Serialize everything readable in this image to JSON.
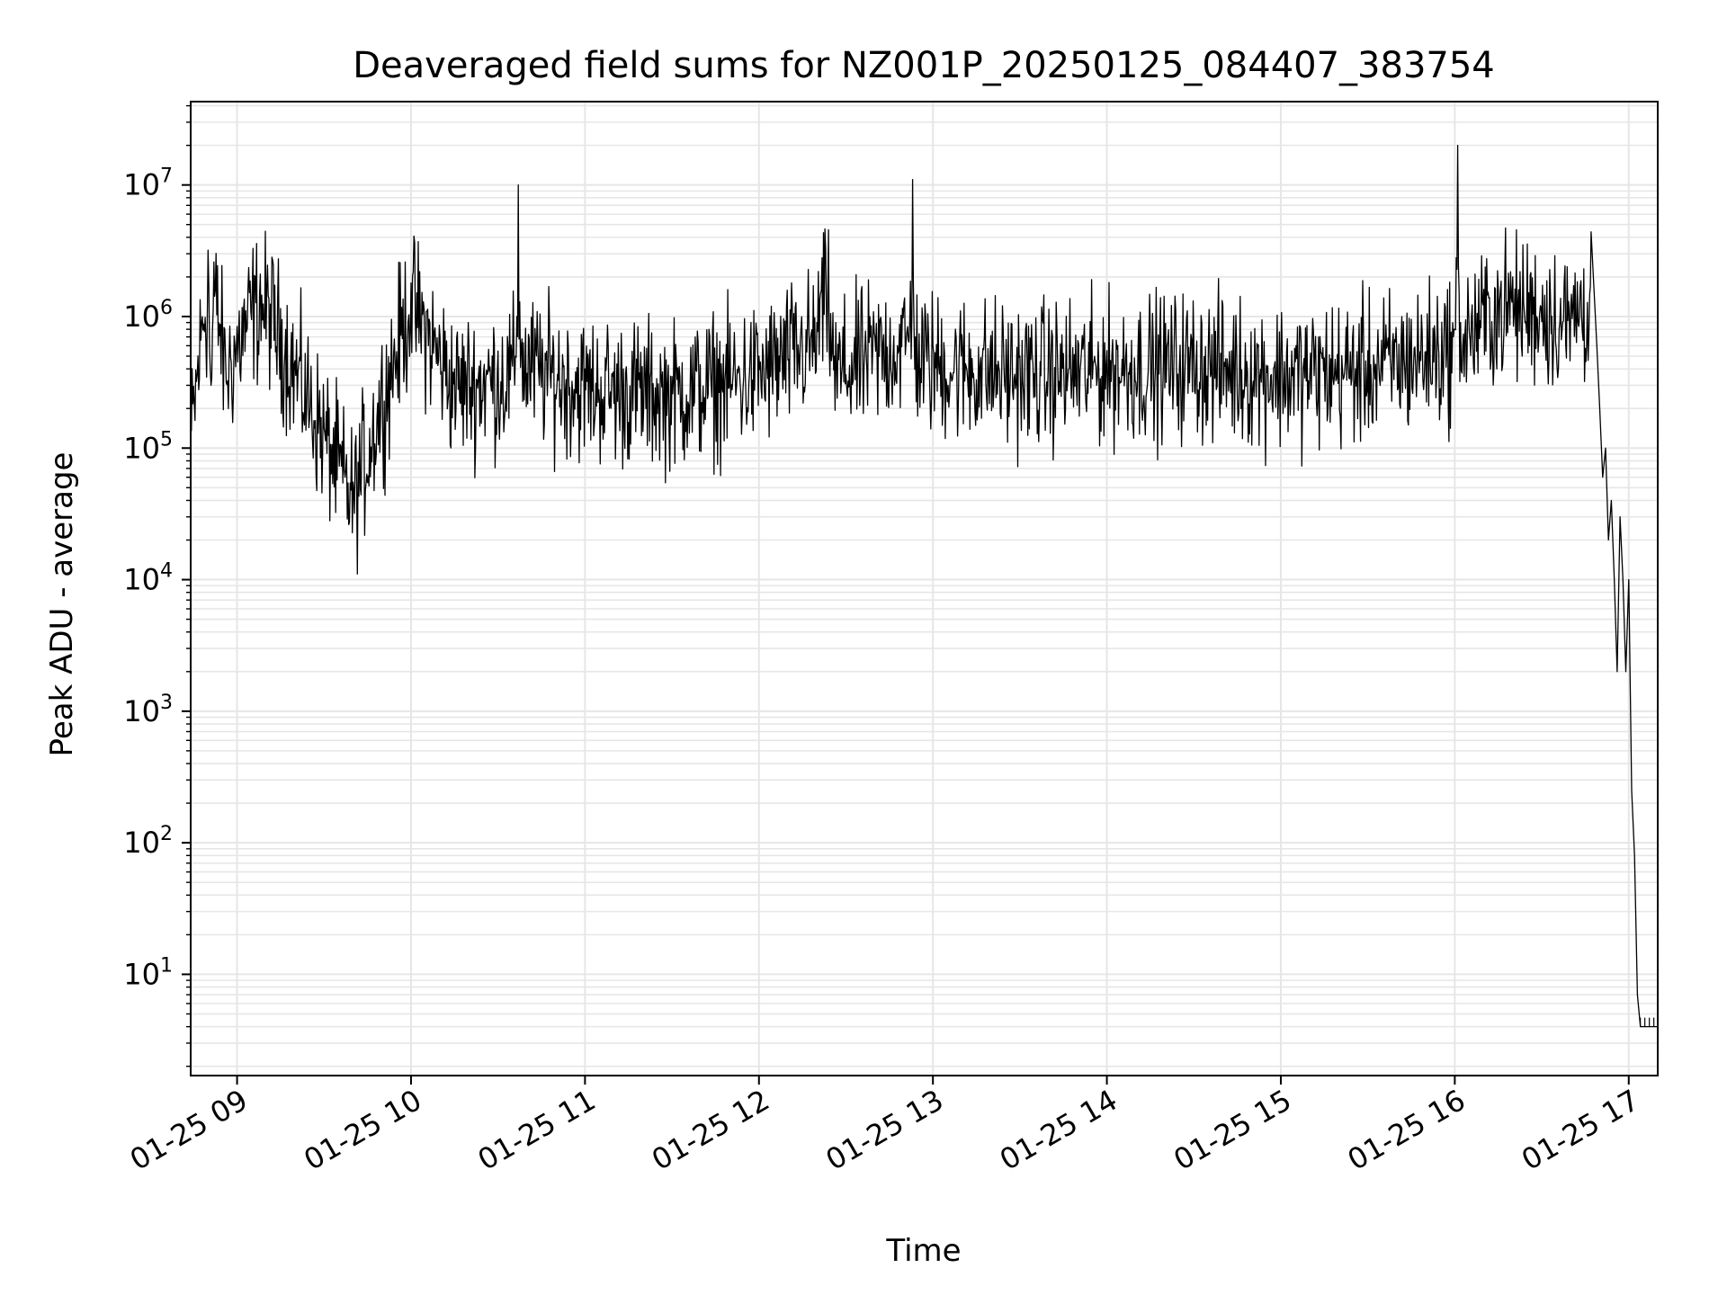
{
  "chart_data": {
    "type": "line",
    "title": "Deaveraged field sums for NZ001P_20250125_084407_383754",
    "xlabel": "Time",
    "ylabel": "Peak ADU - average",
    "yscale": "log",
    "grid": true,
    "legend": "none",
    "line_color": "#000000",
    "xlim": [
      "2025-01-25 08:44",
      "2025-01-25 17:10"
    ],
    "ylim": [
      1.7,
      43000000
    ],
    "x_ticks": [
      {
        "value": "2025-01-25 09:00",
        "label": "01-25 09"
      },
      {
        "value": "2025-01-25 10:00",
        "label": "01-25 10"
      },
      {
        "value": "2025-01-25 11:00",
        "label": "01-25 11"
      },
      {
        "value": "2025-01-25 12:00",
        "label": "01-25 12"
      },
      {
        "value": "2025-01-25 13:00",
        "label": "01-25 13"
      },
      {
        "value": "2025-01-25 14:00",
        "label": "01-25 14"
      },
      {
        "value": "2025-01-25 15:00",
        "label": "01-25 15"
      },
      {
        "value": "2025-01-25 16:00",
        "label": "01-25 16"
      },
      {
        "value": "2025-01-25 17:00",
        "label": "01-25 17"
      }
    ],
    "y_ticks": [
      {
        "value": 10,
        "base": "10",
        "exp": "1"
      },
      {
        "value": 100,
        "base": "10",
        "exp": "2"
      },
      {
        "value": 1000,
        "base": "10",
        "exp": "3"
      },
      {
        "value": 10000,
        "base": "10",
        "exp": "4"
      },
      {
        "value": 100000,
        "base": "10",
        "exp": "5"
      },
      {
        "value": 1000000,
        "base": "10",
        "exp": "6"
      },
      {
        "value": 10000000,
        "base": "10",
        "exp": "7"
      }
    ],
    "series": [
      {
        "x": [
          "2025-01-25 08:44",
          "2025-01-25 08:50",
          "2025-01-25 08:51",
          "2025-01-25 08:52",
          "2025-01-25 08:56",
          "2025-01-25 09:08",
          "2025-01-25 09:40",
          "2025-01-25 10:00",
          "2025-01-25 10:15",
          "2025-01-25 10:36",
          "2025-01-25 10:37",
          "2025-01-25 10:38",
          "2025-01-25 11:00",
          "2025-01-25 11:30",
          "2025-01-25 12:00",
          "2025-01-25 12:20",
          "2025-01-25 12:23",
          "2025-01-25 12:26",
          "2025-01-25 12:40",
          "2025-01-25 12:52",
          "2025-01-25 12:53",
          "2025-01-25 12:54",
          "2025-01-25 13:00",
          "2025-01-25 13:30",
          "2025-01-25 14:00",
          "2025-01-25 14:30",
          "2025-01-25 15:00",
          "2025-01-25 15:30",
          "2025-01-25 16:00",
          "2025-01-25 16:01",
          "2025-01-25 16:02",
          "2025-01-25 16:20",
          "2025-01-25 16:40",
          "2025-01-25 16:47",
          "2025-01-25 16:49",
          "2025-01-25 16:50",
          "2025-01-25 16:51",
          "2025-01-25 16:52",
          "2025-01-25 16:53",
          "2025-01-25 16:54",
          "2025-01-25 16:55",
          "2025-01-25 16:56",
          "2025-01-25 16:57",
          "2025-01-25 16:58",
          "2025-01-25 16:59",
          "2025-01-25 17:00",
          "2025-01-25 17:01",
          "2025-01-25 17:02",
          "2025-01-25 17:03",
          "2025-01-25 17:04",
          "2025-01-25 17:05",
          "2025-01-25 17:10"
        ],
        "y": [
          150000,
          3200000,
          300000,
          2600000,
          500000,
          2100000,
          55000,
          1800000,
          400000,
          500000,
          10000000,
          600000,
          400000,
          350000,
          500000,
          900000,
          3300000,
          500000,
          700000,
          900000,
          11000000,
          700000,
          600000,
          500000,
          550000,
          600000,
          500000,
          550000,
          800000,
          20000000,
          900000,
          2000000,
          1200000,
          4400000,
          600000,
          200000,
          60000,
          100000,
          20000,
          40000,
          10000,
          2000,
          30000,
          10000,
          2000,
          10000,
          250,
          80,
          7,
          4,
          4,
          4
        ]
      }
    ]
  }
}
